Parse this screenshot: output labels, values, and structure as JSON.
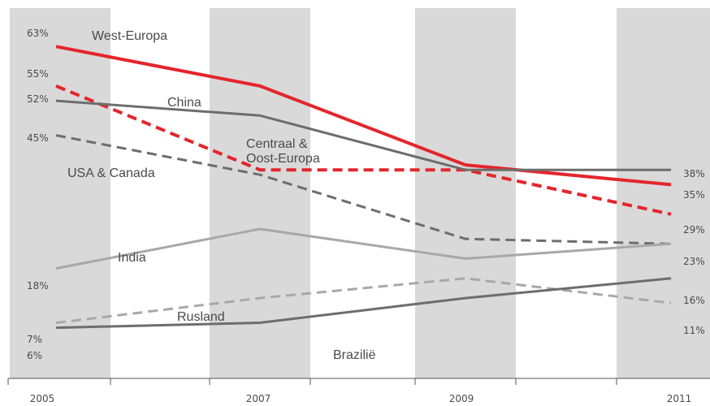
{
  "chart_data": {
    "type": "line",
    "x": [
      "2005",
      "2007",
      "2009",
      "2011"
    ],
    "ylim": [
      0,
      68
    ],
    "grid": false,
    "series": [
      {
        "name": "West-Europa",
        "values": [
          63,
          55,
          39,
          35
        ],
        "color": "#e3262c",
        "dash": "solid"
      },
      {
        "name": "USA & Canada",
        "values": [
          55,
          38,
          38,
          29
        ],
        "color": "#e3262c",
        "dash": "dashed"
      },
      {
        "name": "China",
        "values": [
          52,
          49,
          38,
          38
        ],
        "color": "#6d6d6d",
        "dash": "solid"
      },
      {
        "name": "Centraal & Oost-Europa",
        "values": [
          45,
          37,
          24,
          23
        ],
        "color": "#6d6d6d",
        "dash": "dashed"
      },
      {
        "name": "India",
        "values": [
          18,
          26,
          20,
          23
        ],
        "color": "#a8a8a8",
        "dash": "solid"
      },
      {
        "name": "Rusland",
        "values": [
          7,
          12,
          16,
          11
        ],
        "color": "#a8a8a8",
        "dash": "dashed"
      },
      {
        "name": "Brazilië",
        "values": [
          6,
          7,
          12,
          16
        ],
        "color": "#6d6d6d",
        "dash": "solid"
      }
    ],
    "start_labels": [
      "63%",
      "55%",
      "52%",
      "45%",
      "18%",
      "7%",
      "6%"
    ],
    "end_labels": [
      "38%",
      "35%",
      "29%",
      "23%",
      "16%",
      "11%"
    ]
  }
}
